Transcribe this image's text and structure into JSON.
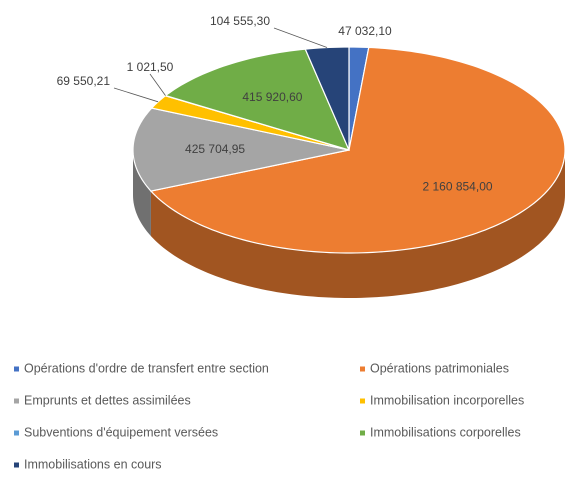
{
  "chart_data": {
    "type": "pie3d",
    "categories": [
      "Opérations d'ordre de transfert entre section",
      "Opérations patrimoniales",
      "Emprunts et dettes assimilées",
      "Immobilisation incorporelles",
      "Subventions d'équipement versées",
      "Immobilisations corporelles",
      "Immobilisations en cours"
    ],
    "values": [
      47032.1,
      2160854.0,
      425704.95,
      69550.21,
      1021.5,
      415920.6,
      104555.3
    ],
    "value_labels": [
      "47 032,10",
      "2 160 854,00",
      "425 704,95",
      "69 550,21",
      "1 021,50",
      "415 920,60",
      "104 555,30"
    ],
    "colors": [
      "#4472c4",
      "#ed7d31",
      "#a5a5a5",
      "#ffc000",
      "#5b9bd5",
      "#70ad47",
      "#264478"
    ],
    "legend": "bottom"
  }
}
